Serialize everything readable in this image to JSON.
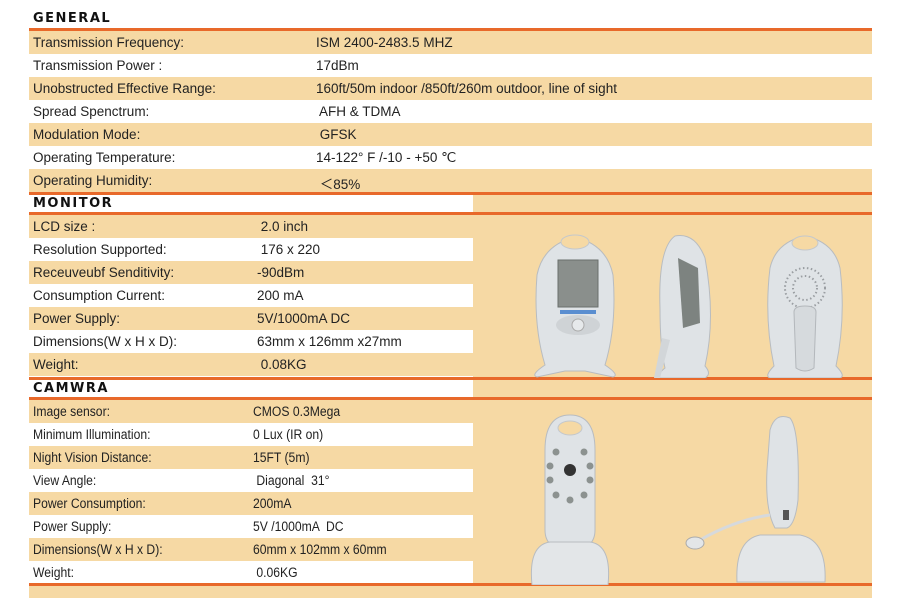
{
  "colors": {
    "accent": "#e8692a",
    "row_fill": "#f6d9a4"
  },
  "sections": [
    {
      "title": "GENERAL",
      "rows": [
        {
          "label": "Transmission Frequency:",
          "value": "ISM 2400-2483.5 MHZ"
        },
        {
          "label": "Transmission Power :",
          "value": "17dBm"
        },
        {
          "label": "Unobstructed Effective Range:",
          "value": "160ft/50m indoor /850ft/260m outdoor, line of sight"
        },
        {
          "label": "Spread Spenctrum:",
          "value": " AFH & TDMA"
        },
        {
          "label": "Modulation Mode:",
          "value": " GFSK"
        },
        {
          "label": "Operating Temperature:",
          "value": "14-122° F /-10 - +50 ℃"
        },
        {
          "label": "Operating Humidity:",
          "value": " ＜85%"
        }
      ]
    },
    {
      "title": "MONITOR",
      "rows": [
        {
          "label": "LCD size :",
          "value": " 2.0 inch"
        },
        {
          "label": "Resolution Supported:",
          "value": " 176 x 220"
        },
        {
          "label": "Receuveubf Senditivity:",
          "value": "-90dBm"
        },
        {
          "label": "Consumption Current:",
          "value": "200 mA"
        },
        {
          "label": "Power Supply:",
          "value": "5V/1000mA DC"
        },
        {
          "label": "Dimensions(W x H x D):",
          "value": "63mm x 126mm x27mm"
        },
        {
          "label": "Weight:",
          "value": " 0.08KG"
        }
      ]
    },
    {
      "title": "CAMWRA",
      "rows": [
        {
          "label": "Image sensor:",
          "value": "CMOS 0.3Mega"
        },
        {
          "label": "Minimum Illumination:",
          "value": "0 Lux (IR on)"
        },
        {
          "label": "Night Vision Distance:",
          "value": "15FT (5m)"
        },
        {
          "label": "View Angle:",
          "value": " Diagonal  31°"
        },
        {
          "label": "Power Consumption:",
          "value": "200mA"
        },
        {
          "label": "Power Supply:",
          "value": "5V /1000mA  DC"
        },
        {
          "label": "Dimensions(W x H x D):",
          "value": "60mm x 102mm x 60mm"
        },
        {
          "label": "Weight:",
          "value": " 0.06KG"
        }
      ]
    }
  ]
}
